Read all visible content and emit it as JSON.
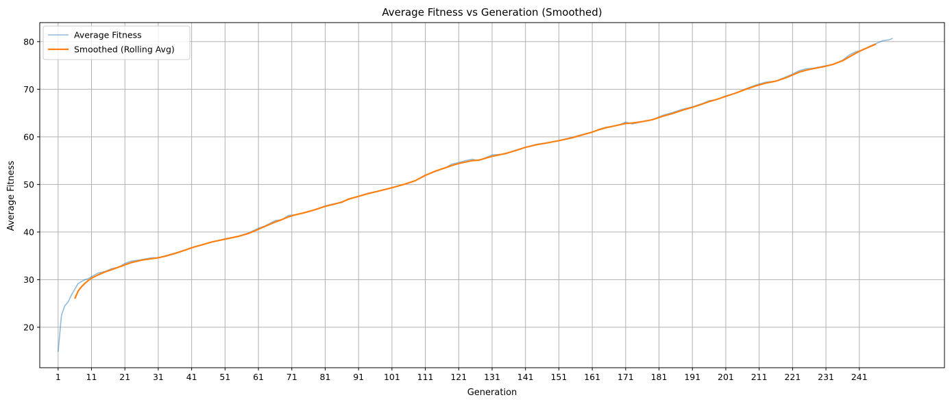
{
  "chart_data": {
    "type": "line",
    "title": "Average Fitness vs Generation (Smoothed)",
    "xlabel": "Generation",
    "ylabel": "Average Fitness",
    "xlim": [
      -4.5,
      266.5
    ],
    "ylim": [
      11.5,
      84
    ],
    "x_ticks": [
      1,
      11,
      21,
      31,
      41,
      51,
      61,
      71,
      81,
      91,
      101,
      111,
      121,
      131,
      141,
      151,
      161,
      171,
      181,
      191,
      201,
      211,
      221,
      231,
      241
    ],
    "y_ticks": [
      20,
      30,
      40,
      50,
      60,
      70,
      80
    ],
    "grid": true,
    "legend_position": "upper left",
    "series": [
      {
        "name": "Average Fitness",
        "color": "#1f77b4",
        "opacity": 0.5,
        "x": [
          1,
          2,
          3,
          4,
          5,
          6,
          7,
          8,
          9,
          10,
          11,
          13,
          15,
          17,
          19,
          21,
          23,
          26,
          29,
          31,
          33,
          36,
          39,
          41,
          44,
          47,
          51,
          55,
          58,
          61,
          63,
          66,
          68,
          70,
          72,
          75,
          78,
          81,
          84,
          86,
          88,
          91,
          94,
          97,
          101,
          105,
          108,
          111,
          114,
          117,
          119,
          121,
          123,
          125,
          127,
          129,
          131,
          133,
          135,
          138,
          141,
          144,
          148,
          151,
          155,
          158,
          161,
          163,
          165,
          167,
          169,
          171,
          173,
          176,
          179,
          182,
          185,
          188,
          191,
          194,
          196,
          198,
          201,
          204,
          207,
          210,
          213,
          216,
          219,
          221,
          223,
          225,
          227,
          230,
          233,
          236,
          238,
          240,
          242,
          244,
          246,
          248,
          250,
          251
        ],
        "y": [
          14.8,
          22.5,
          24.5,
          25.3,
          26.8,
          28.0,
          29.2,
          29.6,
          30.0,
          30.2,
          30.6,
          31.4,
          31.7,
          32.3,
          32.6,
          33.4,
          33.9,
          34.2,
          34.6,
          34.6,
          35.0,
          35.6,
          36.2,
          36.7,
          37.3,
          37.9,
          38.6,
          39.1,
          39.8,
          40.8,
          41.3,
          42.4,
          42.6,
          43.5,
          43.6,
          44.1,
          44.7,
          45.5,
          46.0,
          46.2,
          47.0,
          47.5,
          48.2,
          48.6,
          49.3,
          50.1,
          50.8,
          52.0,
          52.7,
          53.5,
          54.3,
          54.6,
          55.0,
          55.3,
          55.0,
          55.6,
          56.2,
          56.3,
          56.4,
          57.2,
          57.8,
          58.4,
          58.8,
          59.2,
          59.9,
          60.5,
          61.0,
          61.6,
          62.0,
          62.2,
          62.5,
          63.1,
          62.7,
          63.2,
          63.6,
          64.5,
          65.1,
          65.8,
          66.3,
          67.0,
          67.6,
          67.8,
          68.6,
          69.2,
          70.1,
          70.9,
          71.5,
          71.7,
          72.6,
          73.2,
          73.9,
          74.3,
          74.4,
          74.8,
          75.2,
          76.1,
          77.2,
          77.9,
          78.2,
          79.0,
          79.6,
          80.2,
          80.4,
          80.7
        ]
      },
      {
        "name": "Smoothed (Rolling Avg)",
        "color": "#ff7f0e",
        "opacity": 1,
        "x": [
          6,
          7,
          8,
          9,
          10,
          11,
          13,
          15,
          17,
          19,
          21,
          23,
          26,
          29,
          31,
          33,
          36,
          39,
          41,
          44,
          47,
          51,
          55,
          58,
          61,
          63,
          66,
          68,
          70,
          72,
          75,
          78,
          81,
          84,
          86,
          88,
          91,
          94,
          97,
          101,
          105,
          108,
          111,
          114,
          117,
          119,
          121,
          123,
          125,
          127,
          129,
          131,
          133,
          135,
          138,
          141,
          144,
          148,
          151,
          155,
          158,
          161,
          163,
          165,
          167,
          169,
          171,
          173,
          176,
          179,
          182,
          185,
          188,
          191,
          194,
          196,
          198,
          201,
          204,
          207,
          210,
          213,
          216,
          219,
          221,
          223,
          225,
          227,
          230,
          233,
          236,
          238,
          240,
          242,
          244,
          246
        ],
        "y": [
          26.0,
          27.6,
          28.5,
          29.2,
          29.8,
          30.3,
          31.0,
          31.6,
          32.1,
          32.6,
          33.1,
          33.6,
          34.1,
          34.4,
          34.6,
          34.9,
          35.5,
          36.2,
          36.7,
          37.3,
          37.9,
          38.5,
          39.1,
          39.7,
          40.6,
          41.2,
          42.1,
          42.6,
          43.2,
          43.6,
          44.1,
          44.7,
          45.4,
          45.9,
          46.3,
          46.9,
          47.5,
          48.1,
          48.6,
          49.3,
          50.1,
          50.8,
          51.9,
          52.8,
          53.5,
          54.0,
          54.4,
          54.7,
          55.0,
          55.1,
          55.5,
          55.9,
          56.2,
          56.5,
          57.1,
          57.8,
          58.3,
          58.8,
          59.2,
          59.8,
          60.4,
          61.0,
          61.5,
          61.9,
          62.2,
          62.5,
          62.8,
          62.9,
          63.2,
          63.6,
          64.3,
          64.9,
          65.6,
          66.2,
          66.9,
          67.4,
          67.8,
          68.5,
          69.2,
          70.0,
          70.7,
          71.3,
          71.7,
          72.4,
          73.0,
          73.6,
          74.0,
          74.3,
          74.7,
          75.2,
          76.0,
          76.8,
          77.6,
          78.3,
          78.9,
          79.5
        ]
      }
    ]
  }
}
